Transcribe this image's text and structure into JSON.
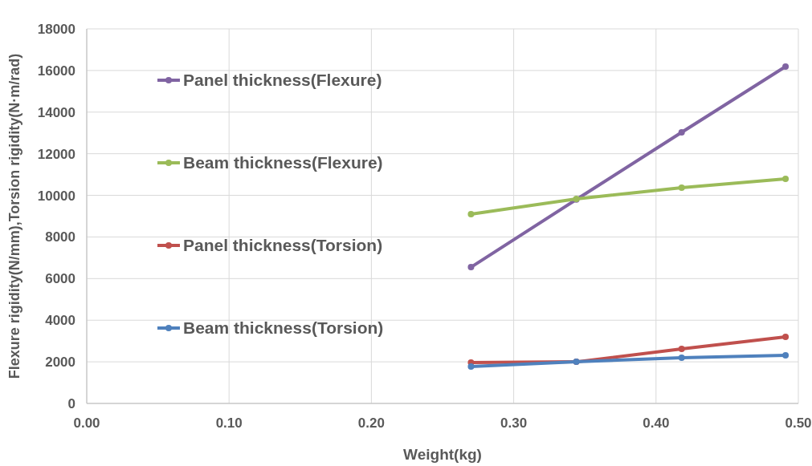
{
  "chart_data": {
    "type": "line",
    "xlabel": "Weight(kg)",
    "ylabel": "Flexure rigidity(N/mm),Torsion rigidity(N·m/rad)",
    "x": [
      0.27,
      0.344,
      0.418,
      0.491
    ],
    "series": [
      {
        "name": "Panel thickness(Flexure)",
        "color": "#8064a2",
        "values": [
          6550,
          9800,
          13030,
          16190
        ]
      },
      {
        "name": "Beam thickness(Flexure)",
        "color": "#9bbb59",
        "values": [
          9100,
          9830,
          10370,
          10790
        ]
      },
      {
        "name": "Panel thickness(Torsion)",
        "color": "#c0504d",
        "values": [
          1970,
          2000,
          2620,
          3200
        ]
      },
      {
        "name": "Beam thickness(Torsion)",
        "color": "#4f81bd",
        "values": [
          1770,
          2000,
          2200,
          2310
        ]
      }
    ],
    "xlim": [
      0,
      0.5
    ],
    "xticks": [
      {
        "value": 0,
        "label": "0.00"
      },
      {
        "value": 0.1,
        "label": "0.10"
      },
      {
        "value": 0.2,
        "label": "0.20"
      },
      {
        "value": 0.3,
        "label": "0.30"
      },
      {
        "value": 0.4,
        "label": "0.40"
      },
      {
        "value": 0.5,
        "label": "0.50"
      }
    ],
    "ylim": [
      0,
      18000
    ],
    "yticks": [
      0,
      2000,
      4000,
      6000,
      8000,
      10000,
      12000,
      14000,
      16000,
      18000
    ],
    "grid": true,
    "legend": "left",
    "marker": "circle",
    "line_style": "solid"
  }
}
